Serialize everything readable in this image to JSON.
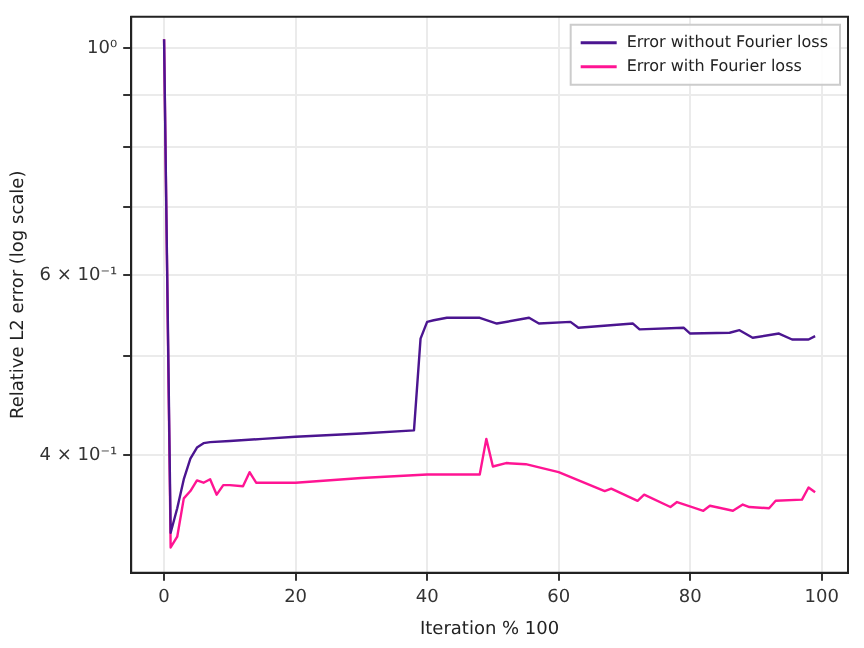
{
  "chart_data": {
    "type": "line",
    "xlabel": "Iteration % 100",
    "ylabel": "Relative L2 error (log scale)",
    "log": "y",
    "grid": true,
    "legend": "top right",
    "marker": "none",
    "line_style": "solid",
    "xlim": [
      -5,
      104
    ],
    "xticks": [
      0,
      20,
      40,
      60,
      80,
      100
    ],
    "ylim": [
      0.307,
      1.073
    ],
    "yticks": [
      {
        "value": 1,
        "label": "10⁰"
      },
      {
        "value": 0.9,
        "label": null
      },
      {
        "value": 0.8,
        "label": null
      },
      {
        "value": 0.7,
        "label": null
      },
      {
        "value": 0.6,
        "label": "6 × 10⁻¹"
      },
      {
        "value": 0.5,
        "label": null
      },
      {
        "value": 0.4,
        "label": "4 × 10⁻¹"
      }
    ],
    "series": [
      {
        "name": "Error without Fourier loss",
        "color": "#4b1590",
        "x": [
          0,
          1,
          2,
          3,
          4,
          5,
          6,
          7,
          10,
          15,
          20,
          30,
          38,
          39,
          40,
          41,
          43,
          48,
          50.6,
          55.5,
          57,
          61.8,
          63,
          71.3,
          72.3,
          79,
          80,
          86,
          87.5,
          89.5,
          93.5,
          95.5,
          98,
          99
        ],
        "values": [
          1.02,
          0.336,
          0.355,
          0.379,
          0.397,
          0.407,
          0.411,
          0.412,
          0.413,
          0.415,
          0.417,
          0.42,
          0.423,
          0.52,
          0.54,
          0.542,
          0.545,
          0.545,
          0.538,
          0.545,
          0.538,
          0.54,
          0.533,
          0.538,
          0.531,
          0.533,
          0.526,
          0.527,
          0.53,
          0.521,
          0.526,
          0.519,
          0.519,
          0.523
        ]
      },
      {
        "name": "Error with Fourier loss",
        "color": "#ff1493",
        "x": [
          0,
          1,
          2,
          3,
          4,
          5,
          6,
          7,
          8,
          9,
          10,
          12,
          13,
          14,
          20,
          30,
          40,
          48,
          49,
          50,
          52,
          55,
          60,
          67,
          68,
          72,
          73,
          77,
          78,
          82,
          83,
          86.5,
          88,
          89,
          92,
          93,
          97,
          98,
          99
        ],
        "values": [
          1.02,
          0.325,
          0.333,
          0.363,
          0.369,
          0.378,
          0.376,
          0.379,
          0.366,
          0.374,
          0.374,
          0.373,
          0.385,
          0.376,
          0.376,
          0.38,
          0.383,
          0.383,
          0.415,
          0.39,
          0.393,
          0.392,
          0.385,
          0.369,
          0.371,
          0.361,
          0.366,
          0.356,
          0.36,
          0.353,
          0.357,
          0.353,
          0.358,
          0.356,
          0.355,
          0.361,
          0.362,
          0.372,
          0.368
        ]
      }
    ]
  }
}
